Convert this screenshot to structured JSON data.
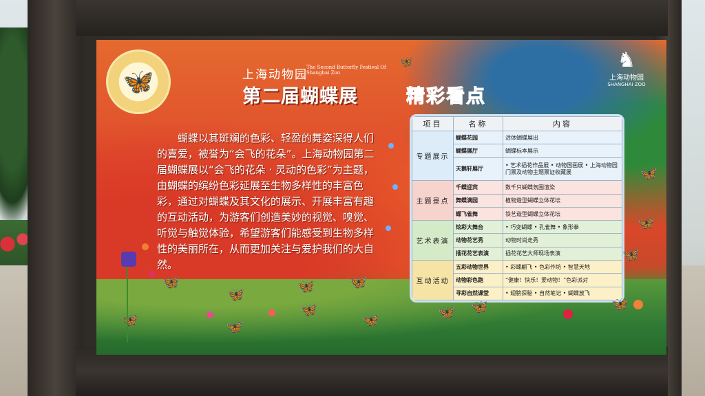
{
  "sign": {
    "zoo_name_cn": "上海动物园",
    "zoo_name_en": "The Second Butterfly Festival Of Shanghai Zoo",
    "title": "第二届蝴蝶展",
    "highlights_title": "精彩看点",
    "logo_cn": "上海动物园",
    "logo_en": "SHANGHAI ZOO",
    "intro": "蝴蝶以其斑斓的色彩、轻盈的舞姿深得人们的喜爱，被誉为“会飞的花朵”。上海动物园第二届蝴蝶展以“会飞的花朵 · 灵动的色彩”为主题，由蝴蝶的缤纷色彩延展至生物多样性的丰富色彩，通过对蝴蝶及其文化的展示、开展丰富有趣的互动活动，为游客们创造美妙的视觉、嗅觉、听觉与触觉体验，希望游客们能感受到生物多样性的美丽所在，从而更加关注与爱护我们的大自然。"
  },
  "table": {
    "headers": [
      "项目",
      "名称",
      "内容"
    ],
    "groups": [
      {
        "category": "专题展示",
        "rows": [
          {
            "name": "蝴蝶花园",
            "content": "活体蝴蝶展出"
          },
          {
            "name": "蝴蝶展厅",
            "content": "蝴蝶标本展示"
          },
          {
            "name": "天鹅轩展厅",
            "content": "• 艺术插花作品展 • 动物国画展 • 上海动物园门票及动物主题票证收藏展"
          }
        ]
      },
      {
        "category": "主题景点",
        "rows": [
          {
            "name": "千蝶迎宾",
            "content": "数千只蝴蝶氛围渲染"
          },
          {
            "name": "舞蝶满园",
            "content": "植物造型蝴蝶立体花坛"
          },
          {
            "name": "蝶飞雀舞",
            "content": "铁艺造型蝴蝶立体花坛"
          }
        ]
      },
      {
        "category": "艺术表演",
        "rows": [
          {
            "name": "炫彩大舞台",
            "content": "• 巧变蝴蝶 • 孔雀舞 • 象形拳"
          },
          {
            "name": "动物花艺秀",
            "content": "动物时尚走秀"
          },
          {
            "name": "插花花艺表演",
            "content": "插花花艺大师现场表演"
          }
        ]
      },
      {
        "category": "互动活动",
        "rows": [
          {
            "name": "五彩动物世界",
            "content": "• 彩蝶翩飞 • 色彩作坊 • 智慧天地"
          },
          {
            "name": "动物彩色跑",
            "content": "“健康！快乐！爱动物！”色彩派对"
          },
          {
            "name": "寻彩自然课堂",
            "content": "• 翅膀探秘 • 自然笔记 • 蝴蝶放飞"
          }
        ]
      }
    ]
  }
}
